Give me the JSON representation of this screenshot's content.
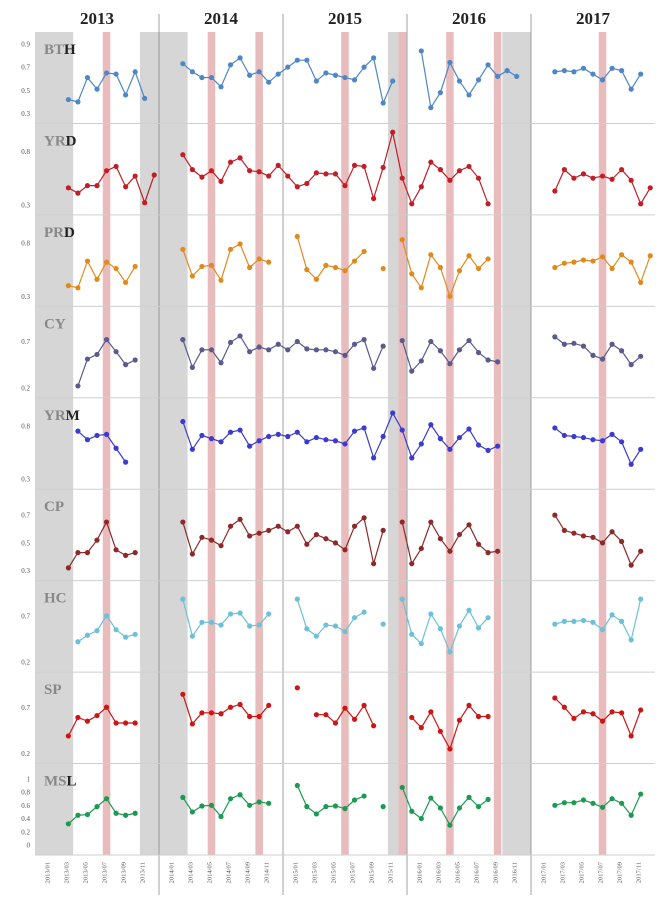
{
  "chart_data": {
    "type": "line",
    "years": [
      "2013",
      "2014",
      "2015",
      "2016",
      "2017"
    ],
    "x_labels": [
      "2013/01",
      "2013/03",
      "2013/05",
      "2013/07",
      "2013/09",
      "2013/11",
      "2014/01",
      "2014/03",
      "2014/05",
      "2014/07",
      "2014/09",
      "2014/11",
      "2015/01",
      "2015/03",
      "2015/05",
      "2015/07",
      "2015/09",
      "2015/11",
      "2016/01",
      "2016/03",
      "2016/05",
      "2016/07",
      "2016/09",
      "2016/11",
      "2017/01",
      "2017/03",
      "2017/05",
      "2017/07",
      "2017/09",
      "2017/11"
    ],
    "colors": {
      "grey_band": "#d6d6d6",
      "red_band": "#e8bcbc",
      "separator": "#888888",
      "panel_line": "#cfcfcf"
    },
    "panels": [
      {
        "name": "BTH",
        "name_prefix": "BT",
        "name_suffix": "H",
        "color": "#4f86c6",
        "yticks": [
          "0.3",
          "0.5",
          "0.7",
          "0.9"
        ],
        "ylim": [
          0.3,
          0.9
        ],
        "values": [
          null,
          null,
          null,
          0.42,
          0.4,
          0.61,
          0.51,
          0.65,
          0.64,
          0.46,
          0.66,
          0.43,
          null,
          null,
          null,
          0.73,
          0.66,
          0.61,
          0.61,
          0.53,
          0.72,
          0.78,
          0.63,
          0.66,
          0.57,
          0.64,
          0.7,
          0.76,
          0.76,
          0.58,
          0.65,
          0.63,
          0.61,
          0.59,
          0.7,
          0.78,
          0.39,
          0.58,
          null,
          null,
          0.84,
          0.35,
          0.48,
          0.74,
          0.58,
          0.46,
          0.59,
          0.72,
          0.62,
          0.67,
          0.62,
          null,
          null,
          null,
          0.66,
          0.67,
          0.66,
          0.69,
          0.64,
          0.59,
          0.69,
          0.67,
          0.51,
          0.64
        ]
      },
      {
        "name": "YRD",
        "name_prefix": "YR",
        "name_suffix": "D",
        "color": "#c21e27",
        "yticks": [
          "0.3",
          "0.8"
        ],
        "ylim": [
          0.3,
          0.95
        ],
        "values": [
          null,
          null,
          null,
          0.46,
          0.41,
          0.48,
          0.48,
          0.62,
          0.66,
          0.47,
          0.57,
          0.32,
          0.58,
          null,
          null,
          0.77,
          0.63,
          0.56,
          0.62,
          0.52,
          0.7,
          0.74,
          0.62,
          0.61,
          0.57,
          0.67,
          0.57,
          0.47,
          0.5,
          0.6,
          0.59,
          0.59,
          0.48,
          0.67,
          0.66,
          0.36,
          0.65,
          0.98,
          0.55,
          0.31,
          0.47,
          0.7,
          0.63,
          0.53,
          0.62,
          0.66,
          0.55,
          0.31,
          null,
          null,
          null,
          null,
          null,
          null,
          0.43,
          0.63,
          0.55,
          0.59,
          0.55,
          0.57,
          0.54,
          0.63,
          0.53,
          0.31,
          0.46
        ]
      },
      {
        "name": "PRD",
        "name_prefix": "PR",
        "name_suffix": "D",
        "color": "#e08a1e",
        "yticks": [
          "0.3",
          "0.8"
        ],
        "ylim": [
          0.3,
          0.95
        ],
        "values": [
          null,
          null,
          null,
          0.4,
          0.38,
          0.63,
          0.46,
          0.62,
          0.56,
          0.43,
          0.58,
          null,
          null,
          null,
          null,
          0.74,
          0.49,
          0.58,
          0.59,
          0.45,
          0.74,
          0.79,
          0.57,
          0.65,
          0.62,
          null,
          null,
          0.86,
          0.55,
          0.46,
          0.59,
          0.57,
          0.54,
          0.63,
          0.72,
          null,
          0.56,
          null,
          0.83,
          0.51,
          0.38,
          0.69,
          0.57,
          0.3,
          0.54,
          0.68,
          0.56,
          0.65,
          null,
          null,
          null,
          null,
          null,
          null,
          0.57,
          0.61,
          0.62,
          0.64,
          0.63,
          0.67,
          0.56,
          0.69,
          0.62,
          0.43,
          0.68
        ]
      },
      {
        "name": "CY",
        "name_prefix": "CY",
        "name_suffix": "",
        "color": "#5a5a8c",
        "yticks": [
          "0.2",
          "0.7"
        ],
        "ylim": [
          0.2,
          0.95
        ],
        "values": [
          null,
          null,
          null,
          null,
          0.22,
          0.51,
          0.56,
          0.72,
          0.59,
          0.45,
          0.5,
          null,
          null,
          null,
          null,
          0.72,
          0.42,
          0.61,
          0.61,
          0.47,
          0.69,
          0.76,
          0.59,
          0.64,
          0.61,
          0.67,
          0.61,
          0.7,
          0.62,
          0.61,
          0.61,
          0.59,
          0.55,
          0.67,
          0.72,
          0.41,
          0.65,
          null,
          0.71,
          0.38,
          0.49,
          0.7,
          0.6,
          0.46,
          0.61,
          0.71,
          0.58,
          0.5,
          0.48,
          null,
          null,
          null,
          null,
          null,
          0.75,
          0.67,
          0.68,
          0.65,
          0.55,
          0.51,
          0.67,
          0.6,
          0.45,
          0.54
        ]
      },
      {
        "name": "YRM",
        "name_prefix": "YR",
        "name_suffix": "M",
        "color": "#3b3bcf",
        "yticks": [
          "0.3",
          "0.8"
        ],
        "ylim": [
          0.3,
          0.95
        ],
        "values": [
          null,
          null,
          null,
          null,
          0.75,
          0.67,
          0.71,
          0.72,
          0.59,
          0.46,
          null,
          null,
          null,
          null,
          null,
          0.84,
          0.58,
          0.71,
          0.68,
          0.65,
          0.74,
          0.76,
          0.61,
          0.66,
          0.7,
          0.72,
          0.7,
          0.74,
          0.65,
          0.69,
          0.67,
          0.66,
          0.63,
          0.75,
          0.78,
          0.5,
          0.7,
          0.92,
          0.76,
          0.5,
          0.63,
          0.81,
          0.68,
          0.58,
          0.69,
          0.77,
          0.62,
          0.57,
          0.61,
          null,
          null,
          null,
          null,
          null,
          0.78,
          0.71,
          0.7,
          0.69,
          0.67,
          0.66,
          0.72,
          0.65,
          0.44,
          0.58
        ]
      },
      {
        "name": "CP",
        "name_prefix": "CP",
        "name_suffix": "",
        "color": "#8c2a2a",
        "yticks": [
          "0.3",
          "0.5",
          "0.7"
        ],
        "ylim": [
          0.3,
          0.8
        ],
        "values": [
          null,
          null,
          null,
          0.32,
          0.43,
          0.43,
          0.52,
          0.65,
          0.45,
          0.41,
          0.43,
          null,
          null,
          null,
          null,
          0.65,
          0.42,
          0.54,
          0.52,
          0.48,
          0.62,
          0.67,
          0.55,
          0.57,
          0.59,
          0.62,
          0.58,
          0.62,
          0.49,
          0.56,
          0.53,
          0.5,
          0.45,
          0.62,
          0.68,
          0.35,
          0.59,
          null,
          0.65,
          0.35,
          0.46,
          0.65,
          0.53,
          0.44,
          0.56,
          0.63,
          0.49,
          0.43,
          0.44,
          null,
          null,
          null,
          null,
          null,
          0.7,
          0.59,
          0.57,
          0.55,
          0.54,
          0.5,
          0.58,
          0.51,
          0.34,
          0.44
        ]
      },
      {
        "name": "HC",
        "name_prefix": "HC",
        "name_suffix": "",
        "color": "#6cc0d8",
        "yticks": [
          "0.2",
          "0.7"
        ],
        "ylim": [
          0.2,
          0.95
        ],
        "values": [
          null,
          null,
          null,
          null,
          0.42,
          0.49,
          0.54,
          0.7,
          0.55,
          0.47,
          0.5,
          null,
          null,
          null,
          null,
          0.88,
          0.48,
          0.63,
          0.63,
          0.6,
          0.72,
          0.73,
          0.59,
          0.6,
          0.72,
          null,
          null,
          0.88,
          0.56,
          0.48,
          0.6,
          0.59,
          0.53,
          0.68,
          0.74,
          null,
          0.61,
          null,
          0.88,
          0.5,
          0.4,
          0.72,
          0.56,
          0.31,
          0.59,
          0.76,
          0.57,
          0.68,
          null,
          null,
          null,
          null,
          null,
          null,
          0.61,
          0.64,
          0.64,
          0.65,
          0.63,
          0.55,
          0.71,
          0.64,
          0.44,
          0.88
        ]
      },
      {
        "name": "SP",
        "name_prefix": "SP",
        "name_suffix": "",
        "color": "#cc1515",
        "yticks": [
          "0.2",
          "0.7"
        ],
        "ylim": [
          0.2,
          0.95
        ],
        "values": [
          null,
          null,
          null,
          0.39,
          0.59,
          0.55,
          0.61,
          0.7,
          0.53,
          0.53,
          0.53,
          null,
          null,
          null,
          null,
          0.84,
          0.52,
          0.64,
          0.64,
          0.63,
          0.7,
          0.73,
          0.6,
          0.6,
          0.72,
          null,
          null,
          0.91,
          null,
          0.62,
          0.62,
          0.53,
          0.69,
          0.57,
          0.72,
          0.5,
          null,
          null,
          null,
          0.59,
          0.48,
          0.65,
          0.44,
          0.25,
          0.56,
          0.72,
          0.6,
          0.6,
          null,
          null,
          null,
          null,
          null,
          null,
          0.8,
          0.7,
          0.58,
          0.65,
          0.63,
          0.55,
          0.65,
          0.64,
          0.39,
          0.67
        ]
      },
      {
        "name": "MSL",
        "name_prefix": "MS",
        "name_suffix": "L",
        "color": "#1c9a52",
        "yticks": [
          "0",
          "0.2",
          "0.4",
          "0.6",
          "0.8",
          "1"
        ],
        "ylim": [
          0,
          1.05
        ],
        "values": [
          null,
          null,
          null,
          0.32,
          0.45,
          0.46,
          0.58,
          0.7,
          0.48,
          0.45,
          0.48,
          null,
          null,
          null,
          null,
          0.72,
          0.5,
          0.59,
          0.6,
          0.43,
          0.7,
          0.76,
          0.6,
          0.65,
          0.63,
          null,
          null,
          0.9,
          0.58,
          0.47,
          0.58,
          0.59,
          0.55,
          0.68,
          0.74,
          null,
          0.58,
          null,
          0.87,
          0.51,
          0.4,
          0.71,
          0.56,
          0.3,
          0.56,
          0.72,
          0.58,
          0.69,
          null,
          null,
          null,
          null,
          null,
          null,
          0.6,
          0.64,
          0.64,
          0.68,
          0.63,
          0.57,
          0.7,
          0.63,
          0.45,
          0.77
        ]
      }
    ]
  }
}
